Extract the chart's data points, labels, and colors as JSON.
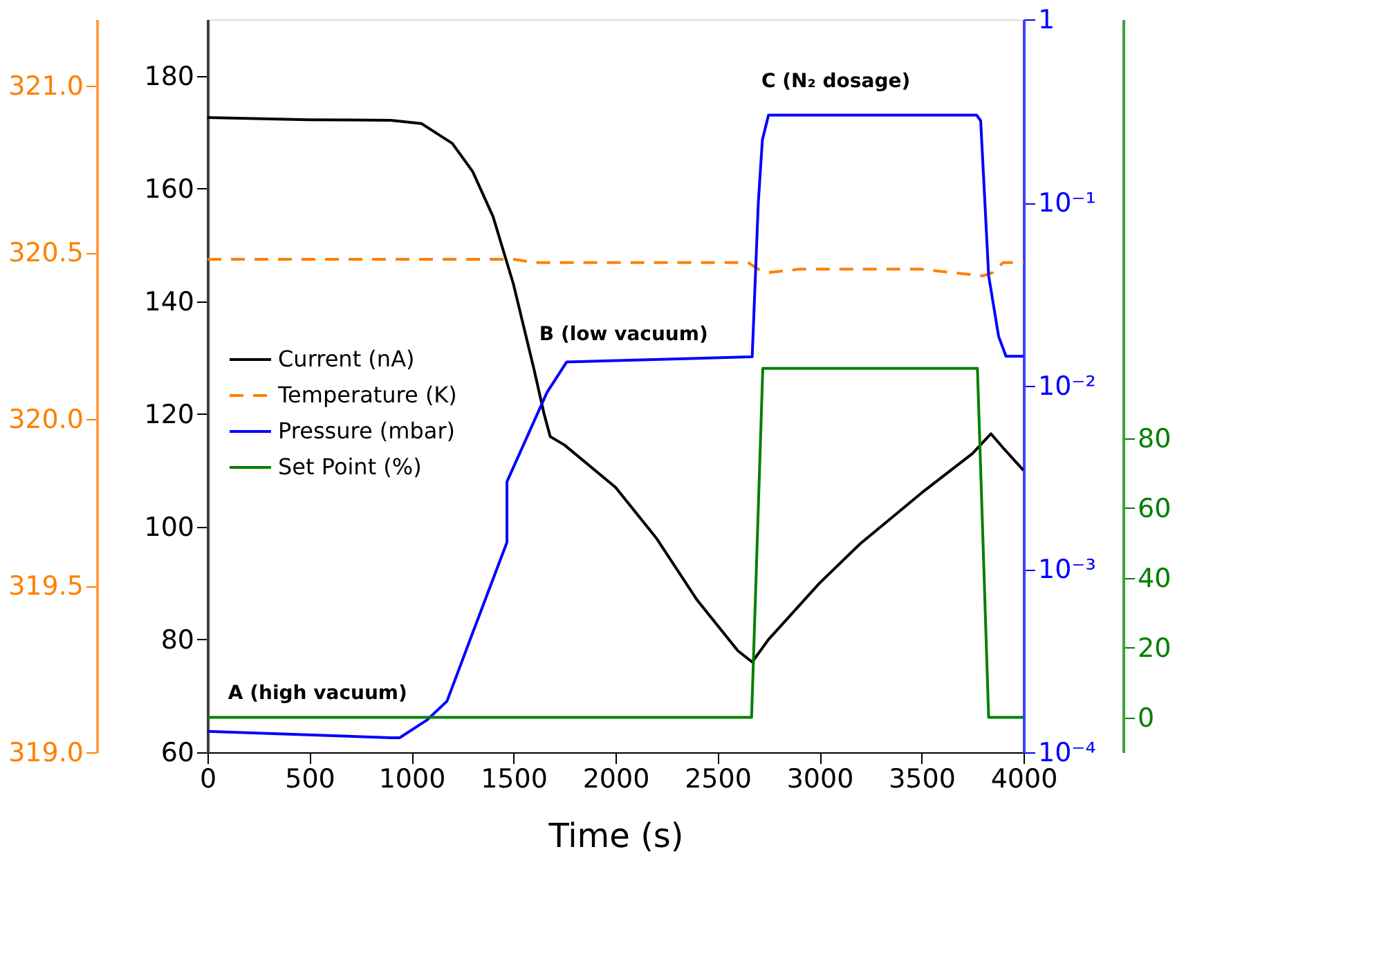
{
  "chart_data": [
    {
      "type": "line",
      "xlabel": "Time (s)",
      "xlim": [
        0,
        4000
      ],
      "xticks": [
        0,
        500,
        1000,
        1500,
        2000,
        2500,
        3000,
        3500,
        4000
      ],
      "ylim": [
        60,
        190
      ],
      "yticks": [
        60,
        80,
        100,
        120,
        140,
        160,
        180
      ],
      "y2lim": [
        0.0001,
        1
      ],
      "y2ticks": [
        {
          "value": 0.0001,
          "label": "10⁻⁴"
        },
        {
          "value": 0.001,
          "label": "10⁻³"
        },
        {
          "value": 0.01,
          "label": "10⁻²"
        },
        {
          "value": 0.1,
          "label": "10⁻¹"
        },
        1
      ],
      "y3lim": [
        319.0,
        321.2
      ],
      "y3ticks": [
        {
          "value": 319,
          "label": "319.0"
        },
        319.5,
        {
          "value": 320,
          "label": "320.0"
        },
        320.5,
        {
          "value": 321,
          "label": "321.0"
        }
      ],
      "log": "y2",
      "grid": false,
      "legend": "left",
      "marker": "none",
      "series": [
        {
          "name": "Current (nA)",
          "color": "#000000",
          "axis": "y",
          "line_style": "solid",
          "x": [
            0,
            500,
            900,
            1050,
            1200,
            1300,
            1400,
            1500,
            1600,
            1650,
            1680,
            1750,
            2000,
            2200,
            2400,
            2600,
            2670,
            2750,
            3000,
            3200,
            3500,
            3750,
            3840,
            3900,
            4000
          ],
          "values": [
            172.6,
            172.2,
            172.1,
            171.5,
            168,
            163,
            155,
            143,
            128,
            120,
            116,
            114.5,
            107,
            98,
            87,
            78,
            76,
            80,
            90,
            97,
            106,
            113,
            116.5,
            114,
            110
          ]
        },
        {
          "name": "Temperature (K)",
          "color": "#ff8000",
          "axis": "y3",
          "line_style": "dashed",
          "x": [
            0,
            1500,
            1600,
            2650,
            2700,
            2750,
            2900,
            3500,
            3800,
            3850,
            3900,
            4000
          ],
          "values": [
            320.48,
            320.48,
            320.47,
            320.47,
            320.45,
            320.44,
            320.45,
            320.45,
            320.43,
            320.44,
            320.47,
            320.47
          ]
        },
        {
          "name": "Pressure (mbar)",
          "color": "#0000ff",
          "axis": "y2",
          "line_style": "solid",
          "x": [
            0,
            900,
            942,
            1076,
            1174,
            1297,
            1468,
            1468,
            1664,
            1761,
            2670,
            2700,
            2720,
            2750,
            3770,
            3790,
            3829,
            3878,
            3914,
            4000
          ],
          "values": [
            0.00013,
            0.00012,
            0.00012,
            0.00015,
            0.00019,
            0.00044,
            0.0014,
            0.003,
            0.0092,
            0.0135,
            0.0144,
            0.1,
            0.22,
            0.3,
            0.3,
            0.28,
            0.04,
            0.0186,
            0.0145,
            0.0145
          ]
        }
      ],
      "annotations": [
        "A (high vacuum)",
        "B (low vacuum)",
        "C (N₂ dosage)"
      ]
    },
    {
      "type": "line",
      "xlim": [
        0,
        4000
      ],
      "ylim": [
        -10,
        200
      ],
      "yticks": [
        0,
        20,
        40,
        60,
        80
      ],
      "tick_labels": "y",
      "series": [
        {
          "name": "Set Point (%)",
          "color": "#008000",
          "line_style": "solid",
          "x": [
            0,
            2667,
            2722,
            3774,
            3829,
            4000
          ],
          "values": [
            0,
            0,
            100,
            100,
            0,
            0
          ]
        }
      ]
    }
  ]
}
